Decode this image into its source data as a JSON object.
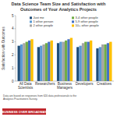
{
  "chart_data": {
    "type": "bar",
    "title": "Data Science Team Size and Satisfaction with Outcomes of Your Analytics Projects",
    "y_label": "Satisfaction with Outcomes",
    "categories": [
      "All Data Scientists",
      "Researchers",
      "Business Managers",
      "Developers",
      "Creatives"
    ],
    "series": [
      {
        "name": "Just me",
        "color": "#1f4e79",
        "values": [
          2.7,
          2.6,
          2.9,
          2.6,
          2.5
        ]
      },
      {
        "name": "1 other person",
        "color": "#5b9bd5",
        "values": [
          2.8,
          2.7,
          3.0,
          2.7,
          2.6
        ]
      },
      {
        "name": "2 other people",
        "color": "#a5a5a5",
        "values": [
          2.9,
          2.8,
          3.0,
          2.9,
          2.8
        ]
      },
      {
        "name": "3-4 other people",
        "color": "#70ad47",
        "values": [
          3.0,
          2.9,
          3.1,
          3.0,
          2.8
        ]
      },
      {
        "name": "5-9 other people",
        "color": "#4472c4",
        "values": [
          3.1,
          3.0,
          3.2,
          3.0,
          2.9
        ]
      },
      {
        "name": "10+ other people",
        "color": "#ffc000",
        "values": [
          3.2,
          3.1,
          3.3,
          3.1,
          3.0
        ]
      }
    ],
    "ylim": [
      0,
      5
    ],
    "yticks": [
      0,
      1,
      2,
      3,
      4,
      5
    ],
    "grid": false,
    "legend": "top",
    "note": "Data are based on responses from 620 data professionals to the Analytics Practitioners Survey.",
    "source": "BUSINESS OVER BROADWAY"
  }
}
